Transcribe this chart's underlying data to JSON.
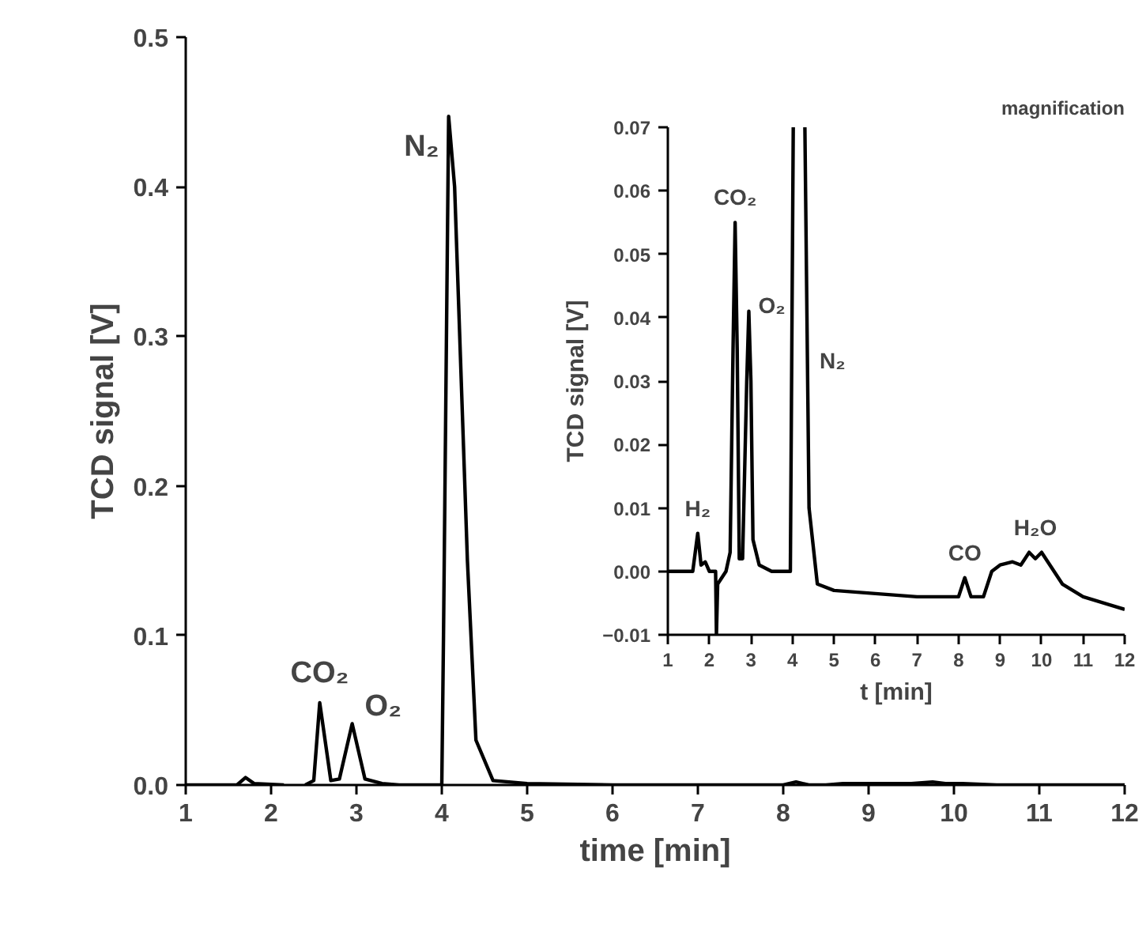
{
  "chart_data": [
    {
      "type": "line",
      "xlabel": "time [min]",
      "ylabel": "TCD signal [V]",
      "xlim": [
        1,
        12
      ],
      "ylim": [
        0,
        0.5
      ],
      "xticks": [
        1,
        2,
        3,
        4,
        5,
        6,
        7,
        8,
        9,
        10,
        11,
        12
      ],
      "yticks": [
        {
          "value": 0,
          "label": "0.0"
        },
        0.1,
        0.2,
        0.3,
        0.4,
        0.5
      ],
      "grid": false,
      "marker": "none",
      "line_style": "solid",
      "series": [
        {
          "color": "#000000",
          "x": [
            1,
            1.6,
            1.7,
            1.8,
            2.15,
            2.17,
            2.2,
            2.4,
            2.5,
            2.57,
            2.7,
            2.8,
            2.95,
            3.1,
            3.3,
            3.5,
            4.0,
            4.02,
            4.08,
            4.15,
            4.3,
            4.4,
            4.6,
            5,
            6,
            7,
            8,
            8.15,
            8.3,
            8.5,
            8.7,
            9,
            9.5,
            9.75,
            9.9,
            10.1,
            10.5,
            11,
            12
          ],
          "values": [
            0,
            0,
            0.005,
            0.001,
            0,
            null,
            null,
            0,
            0.003,
            0.055,
            0.003,
            0.004,
            0.041,
            0.004,
            0.001,
            0,
            0,
            0.1,
            0.447,
            0.4,
            0.15,
            0.03,
            0.003,
            0.001,
            0,
            0,
            0,
            0.002,
            0,
            0,
            0.001,
            0.001,
            0.001,
            0.002,
            0.001,
            0.001,
            0,
            0,
            0
          ]
        }
      ],
      "annotations": [
        {
          "text": "CO₂",
          "x": 2.57,
          "y": 0.055
        },
        {
          "text": "O₂",
          "x": 2.95,
          "y": 0.041
        },
        {
          "text": "N₂",
          "x": 4.08,
          "y": 0.447
        }
      ]
    },
    {
      "type": "line",
      "title": "magnification",
      "xlabel": "t [min]",
      "ylabel": "TCD signal [V]",
      "xlim": [
        1,
        12
      ],
      "ylim": [
        -0.01,
        0.07
      ],
      "xticks": [
        1,
        2,
        3,
        4,
        5,
        6,
        7,
        8,
        9,
        10,
        11,
        12
      ],
      "yticks": [
        -0.01,
        {
          "value": 0,
          "label": "0.00"
        },
        0.01,
        0.02,
        0.03,
        0.04,
        0.05,
        0.06,
        0.07
      ],
      "grid": false,
      "marker": "none",
      "line_style": "solid",
      "series": [
        {
          "color": "#000000",
          "x": [
            1,
            1.6,
            1.72,
            1.8,
            1.9,
            2.0,
            2.15,
            2.17,
            2.2,
            2.4,
            2.5,
            2.57,
            2.62,
            2.67,
            2.72,
            2.8,
            2.9,
            2.95,
            3.0,
            3.05,
            3.2,
            3.5,
            3.95,
            4.02,
            4.15,
            4.3,
            4.4,
            4.6,
            5,
            6,
            7,
            8,
            8.15,
            8.3,
            8.6,
            8.8,
            9,
            9.3,
            9.5,
            9.7,
            9.85,
            10,
            10.2,
            10.5,
            11,
            12
          ],
          "values": [
            0,
            0,
            0.006,
            0.001,
            0.0015,
            0,
            0,
            -0.01,
            -0.002,
            0,
            0.003,
            0.035,
            0.055,
            0.035,
            0.002,
            0.002,
            0.03,
            0.041,
            0.03,
            0.005,
            0.001,
            0,
            0,
            0.07,
            null,
            0.07,
            0.01,
            -0.002,
            -0.003,
            -0.0035,
            -0.004,
            -0.004,
            -0.001,
            -0.004,
            -0.004,
            0,
            0.001,
            0.0015,
            0.001,
            0.003,
            0.002,
            0.003,
            0.001,
            -0.002,
            -0.004,
            -0.006
          ]
        }
      ],
      "annotations": [
        {
          "text": "H₂",
          "x": 1.72,
          "y": 0.006
        },
        {
          "text": "CO₂",
          "x": 2.62,
          "y": 0.055
        },
        {
          "text": "O₂",
          "x": 2.95,
          "y": 0.041
        },
        {
          "text": "N₂",
          "x": 4.35,
          "y": 0.04
        },
        {
          "text": "CO",
          "x": 8.15,
          "y": -0.001
        },
        {
          "text": "H₂O",
          "x": 9.85,
          "y": 0.003
        }
      ]
    }
  ]
}
